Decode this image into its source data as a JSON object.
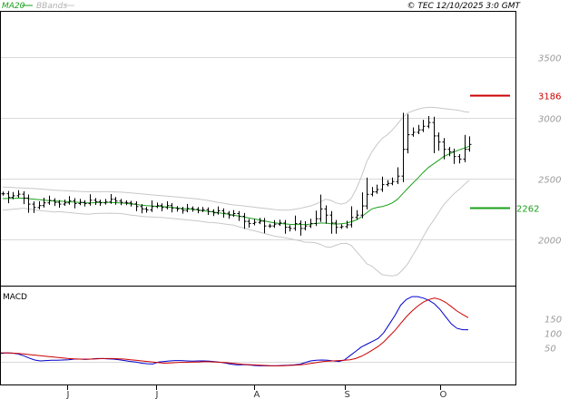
{
  "header": {
    "legend_ma": "MA20",
    "legend_bb": "BBands",
    "credit": "© TEC 12/10/2025 3:0 GMT"
  },
  "colors": {
    "price": "#000000",
    "ma": "#1aa01a",
    "bbands": "#c8c8c8",
    "resistance": "#cc0000",
    "support": "#1aa01a",
    "macd": "#0000cc",
    "signal": "#cc0000",
    "grid": "#d9d9d9"
  },
  "chart_data": [
    {
      "type": "line",
      "panel": "price",
      "title": "",
      "ylim": [
        1620,
        3870
      ],
      "yticks": [
        "3500",
        "3000",
        "2500",
        "2000"
      ],
      "grid": true,
      "x_labels": [
        "J",
        "J",
        "A",
        "S",
        "O"
      ],
      "levels": [
        {
          "label": "3186",
          "value": 3186,
          "color": "#cc0000"
        },
        {
          "label": "2262",
          "value": 2262,
          "color": "#1aa01a"
        }
      ],
      "series": [
        {
          "key": "close",
          "values": [
            2375,
            2345,
            2358,
            2372,
            2340,
            2290,
            2262,
            2278,
            2300,
            2320,
            2305,
            2290,
            2300,
            2318,
            2295,
            2305,
            2295,
            2322,
            2310,
            2300,
            2308,
            2330,
            2315,
            2305,
            2300,
            2292,
            2270,
            2250,
            2242,
            2270,
            2278,
            2262,
            2278,
            2258,
            2250,
            2238,
            2255,
            2248,
            2238,
            2244,
            2230,
            2218,
            2235,
            2215,
            2200,
            2212,
            2190,
            2148,
            2130,
            2140,
            2150,
            2110,
            2110,
            2125,
            2135,
            2100,
            2090,
            2130,
            2090,
            2110,
            2130,
            2170,
            2250,
            2200,
            2135,
            2100,
            2105,
            2120,
            2180,
            2200,
            2275,
            2370,
            2390,
            2410,
            2450,
            2460,
            2475,
            2520,
            2740,
            2860,
            2880,
            2900,
            2930,
            2960,
            2850,
            2800,
            2740,
            2720,
            2680,
            2660,
            2740,
            2780
          ]
        },
        {
          "key": "ma20",
          "values": [
            2335,
            2336,
            2337,
            2338,
            2339,
            2335,
            2331,
            2327,
            2323,
            2319,
            2315,
            2315,
            2312,
            2309,
            2306,
            2303,
            2300,
            2300,
            2302,
            2303,
            2303,
            2303,
            2302,
            2300,
            2296,
            2291,
            2287,
            2282,
            2278,
            2275,
            2272,
            2270,
            2266,
            2262,
            2258,
            2254,
            2250,
            2246,
            2242,
            2236,
            2230,
            2225,
            2219,
            2213,
            2206,
            2200,
            2192,
            2184,
            2176,
            2168,
            2160,
            2152,
            2144,
            2136,
            2131,
            2127,
            2124,
            2122,
            2122,
            2121,
            2126,
            2131,
            2134,
            2134,
            2128,
            2126,
            2128,
            2134,
            2145,
            2160,
            2186,
            2220,
            2250,
            2262,
            2270,
            2282,
            2300,
            2330,
            2375,
            2420,
            2463,
            2505,
            2550,
            2590,
            2620,
            2650,
            2680,
            2700,
            2720,
            2735,
            2750,
            2765
          ]
        },
        {
          "key": "bb_upper",
          "values": [
            2430,
            2428,
            2426,
            2424,
            2422,
            2420,
            2418,
            2416,
            2412,
            2408,
            2404,
            2402,
            2400,
            2398,
            2396,
            2394,
            2392,
            2392,
            2392,
            2392,
            2392,
            2391,
            2390,
            2388,
            2385,
            2382,
            2378,
            2374,
            2370,
            2366,
            2362,
            2359,
            2356,
            2352,
            2348,
            2344,
            2340,
            2336,
            2332,
            2326,
            2320,
            2312,
            2304,
            2298,
            2290,
            2283,
            2280,
            2275,
            2270,
            2265,
            2260,
            2255,
            2250,
            2245,
            2242,
            2240,
            2242,
            2248,
            2255,
            2265,
            2275,
            2290,
            2310,
            2330,
            2320,
            2300,
            2290,
            2300,
            2340,
            2420,
            2520,
            2640,
            2720,
            2780,
            2830,
            2860,
            2900,
            2950,
            3000,
            3040,
            3055,
            3070,
            3080,
            3085,
            3085,
            3080,
            3075,
            3070,
            3065,
            3060,
            3050,
            3045
          ]
        },
        {
          "key": "bb_lower",
          "values": [
            2240,
            2244,
            2248,
            2252,
            2256,
            2250,
            2244,
            2238,
            2234,
            2230,
            2226,
            2228,
            2224,
            2220,
            2216,
            2212,
            2208,
            2208,
            2212,
            2214,
            2214,
            2215,
            2214,
            2212,
            2207,
            2200,
            2196,
            2190,
            2186,
            2184,
            2182,
            2181,
            2176,
            2172,
            2168,
            2164,
            2160,
            2156,
            2152,
            2146,
            2140,
            2138,
            2134,
            2128,
            2122,
            2117,
            2104,
            2093,
            2082,
            2071,
            2060,
            2049,
            2038,
            2027,
            2020,
            2014,
            2006,
            1996,
            1989,
            1977,
            1977,
            1972,
            1958,
            1938,
            1936,
            1952,
            1966,
            1968,
            1950,
            1900,
            1852,
            1800,
            1780,
            1744,
            1710,
            1704,
            1700,
            1710,
            1750,
            1800,
            1871,
            1940,
            2020,
            2095,
            2155,
            2220,
            2285,
            2330,
            2375,
            2410,
            2450,
            2485
          ]
        }
      ]
    },
    {
      "type": "line",
      "panel": "macd",
      "title": "MACD",
      "ylim": [
        -80,
        260
      ],
      "yticks": [
        "150",
        "100",
        "50"
      ],
      "grid": true,
      "series": [
        {
          "key": "macd",
          "values": [
            28,
            30,
            29,
            26,
            20,
            12,
            5,
            2,
            3,
            4,
            4,
            5,
            6,
            8,
            8,
            7,
            8,
            10,
            10,
            9,
            8,
            6,
            3,
            0,
            -2,
            -6,
            -8,
            -9,
            -2,
            0,
            2,
            3,
            3,
            2,
            1,
            2,
            2,
            1,
            -1,
            -3,
            -6,
            -10,
            -12,
            -11,
            -12,
            -14,
            -15,
            -15,
            -15,
            -15,
            -14,
            -13,
            -12,
            -10,
            -4,
            2,
            4,
            5,
            4,
            2,
            0,
            5,
            20,
            35,
            50,
            60,
            70,
            80,
            100,
            130,
            160,
            195,
            215,
            225,
            225,
            220,
            212,
            200,
            180,
            155,
            130,
            115,
            110,
            110
          ]
        },
        {
          "key": "signal",
          "values": [
            30,
            30,
            29,
            28,
            26,
            24,
            22,
            20,
            18,
            16,
            14,
            12,
            10,
            9,
            8,
            8,
            8,
            9,
            10,
            10,
            10,
            9,
            8,
            6,
            4,
            2,
            0,
            -2,
            -4,
            -6,
            -5,
            -4,
            -3,
            -3,
            -2,
            -2,
            -1,
            -1,
            -2,
            -3,
            -4,
            -6,
            -8,
            -10,
            -11,
            -12,
            -13,
            -14,
            -15,
            -15,
            -15,
            -14,
            -13,
            -12,
            -10,
            -7,
            -4,
            -1,
            1,
            2,
            3,
            4,
            6,
            10,
            18,
            28,
            40,
            52,
            68,
            88,
            108,
            132,
            155,
            175,
            192,
            206,
            215,
            220,
            215,
            205,
            190,
            175,
            163,
            152
          ]
        }
      ]
    }
  ]
}
